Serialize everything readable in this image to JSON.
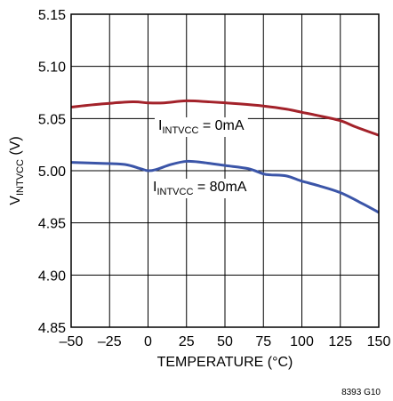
{
  "chart_data": {
    "type": "line",
    "title": "",
    "xlabel": "TEMPERATURE (°C)",
    "ylabel": {
      "main": "V",
      "sub": "INTVCC",
      "suffix": " (V)"
    },
    "xlim": [
      -50,
      150
    ],
    "ylim": [
      4.85,
      5.15
    ],
    "xticks": [
      -50,
      -25,
      0,
      25,
      50,
      75,
      100,
      125,
      150
    ],
    "yticks": [
      4.85,
      4.9,
      4.95,
      5.0,
      5.05,
      5.1,
      5.15
    ],
    "xtick_labels": [
      "–50",
      "–25",
      "0",
      "25",
      "50",
      "75",
      "100",
      "125",
      "150"
    ],
    "ytick_labels": [
      "4.85",
      "4.90",
      "4.95",
      "5.00",
      "5.05",
      "5.10",
      "5.15"
    ],
    "grid": true,
    "series": [
      {
        "label": {
          "main": "I",
          "sub": "INTVCC",
          "suffix": " = 0mA"
        },
        "color": "#a3222a",
        "x": [
          -50,
          -30,
          -10,
          0,
          10,
          25,
          40,
          60,
          75,
          90,
          100,
          110,
          125,
          135,
          150
        ],
        "y": [
          5.061,
          5.064,
          5.066,
          5.065,
          5.065,
          5.067,
          5.066,
          5.064,
          5.062,
          5.059,
          5.056,
          5.053,
          5.048,
          5.042,
          5.034
        ]
      },
      {
        "label": {
          "main": "I",
          "sub": "INTVCC",
          "suffix": " = 80mA"
        },
        "color": "#3b55a8",
        "x": [
          -50,
          -30,
          -15,
          -5,
          0,
          5,
          15,
          25,
          35,
          50,
          65,
          75,
          80,
          90,
          100,
          110,
          125,
          140,
          150
        ],
        "y": [
          5.008,
          5.007,
          5.006,
          5.002,
          5.0,
          5.001,
          5.006,
          5.009,
          5.008,
          5.005,
          5.002,
          4.997,
          4.996,
          4.995,
          4.99,
          4.986,
          4.979,
          4.968,
          4.96
        ]
      }
    ],
    "annotations": [
      "8393 G10"
    ]
  }
}
